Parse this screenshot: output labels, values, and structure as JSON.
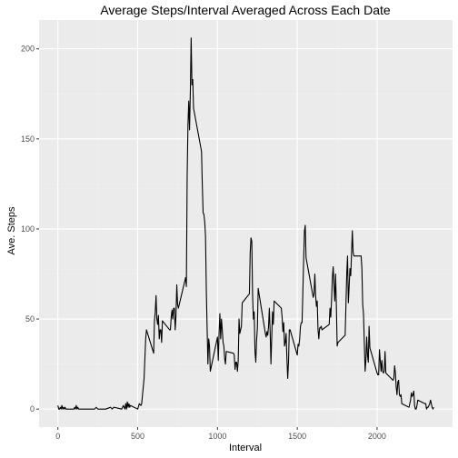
{
  "chart_data": {
    "type": "line",
    "title": "Average Steps/Interval Averaged Across Each Date",
    "xlabel": "Interval",
    "ylabel": "Ave. Steps",
    "xlim": [
      -118,
      2473
    ],
    "ylim": [
      -10,
      216
    ],
    "x_ticks": [
      0,
      500,
      1000,
      1500,
      2000
    ],
    "x_tick_labels": [
      "0",
      "500",
      "1000",
      "1500",
      "2000"
    ],
    "y_ticks": [
      0,
      50,
      100,
      150,
      200
    ],
    "y_tick_labels": [
      "0",
      "50",
      "100",
      "150",
      "200"
    ],
    "grid": true,
    "series": [
      {
        "color": "#000000",
        "points": [
          [
            0,
            2
          ],
          [
            5,
            0
          ],
          [
            10,
            0
          ],
          [
            15,
            1
          ],
          [
            20,
            0
          ],
          [
            25,
            2
          ],
          [
            30,
            0
          ],
          [
            35,
            1
          ],
          [
            40,
            0
          ],
          [
            45,
            1
          ],
          [
            50,
            0
          ],
          [
            55,
            0
          ],
          [
            100,
            0
          ],
          [
            105,
            1
          ],
          [
            110,
            0
          ],
          [
            115,
            2
          ],
          [
            120,
            0
          ],
          [
            125,
            1
          ],
          [
            130,
            0
          ],
          [
            150,
            0
          ],
          [
            200,
            0
          ],
          [
            230,
            0
          ],
          [
            240,
            1
          ],
          [
            250,
            0
          ],
          [
            300,
            0
          ],
          [
            330,
            1
          ],
          [
            340,
            0
          ],
          [
            350,
            1
          ],
          [
            400,
            0
          ],
          [
            410,
            2
          ],
          [
            420,
            0
          ],
          [
            425,
            3
          ],
          [
            430,
            0
          ],
          [
            435,
            4
          ],
          [
            440,
            1
          ],
          [
            445,
            3
          ],
          [
            450,
            1
          ],
          [
            455,
            2
          ],
          [
            500,
            0
          ],
          [
            510,
            3
          ],
          [
            520,
            2
          ],
          [
            525,
            3
          ],
          [
            540,
            17
          ],
          [
            550,
            39
          ],
          [
            555,
            44
          ],
          [
            600,
            31
          ],
          [
            605,
            49
          ],
          [
            610,
            54
          ],
          [
            615,
            63
          ],
          [
            620,
            50
          ],
          [
            625,
            47
          ],
          [
            630,
            52
          ],
          [
            635,
            39
          ],
          [
            640,
            44
          ],
          [
            645,
            44
          ],
          [
            650,
            37
          ],
          [
            655,
            49
          ],
          [
            700,
            44
          ],
          [
            705,
            44
          ],
          [
            710,
            51
          ],
          [
            715,
            55
          ],
          [
            720,
            50
          ],
          [
            725,
            56
          ],
          [
            730,
            56
          ],
          [
            735,
            44
          ],
          [
            740,
            52
          ],
          [
            745,
            69
          ],
          [
            750,
            58
          ],
          [
            755,
            56
          ],
          [
            800,
            73
          ],
          [
            805,
            68
          ],
          [
            810,
            129
          ],
          [
            815,
            158
          ],
          [
            820,
            171
          ],
          [
            825,
            155
          ],
          [
            830,
            177
          ],
          [
            835,
            206
          ],
          [
            840,
            180
          ],
          [
            845,
            183
          ],
          [
            850,
            167
          ],
          [
            900,
            143
          ],
          [
            905,
            124
          ],
          [
            910,
            109
          ],
          [
            915,
            108
          ],
          [
            920,
            104
          ],
          [
            925,
            96
          ],
          [
            930,
            66
          ],
          [
            935,
            45
          ],
          [
            940,
            25
          ],
          [
            945,
            39
          ],
          [
            950,
            35
          ],
          [
            955,
            21
          ],
          [
            1000,
            40
          ],
          [
            1005,
            27
          ],
          [
            1010,
            42
          ],
          [
            1015,
            53
          ],
          [
            1020,
            39
          ],
          [
            1025,
            50
          ],
          [
            1030,
            44
          ],
          [
            1035,
            37
          ],
          [
            1040,
            35
          ],
          [
            1045,
            28
          ],
          [
            1050,
            25
          ],
          [
            1055,
            32
          ],
          [
            1100,
            31
          ],
          [
            1105,
            30
          ],
          [
            1110,
            22
          ],
          [
            1115,
            26
          ],
          [
            1120,
            26
          ],
          [
            1125,
            21
          ],
          [
            1130,
            27
          ],
          [
            1135,
            50
          ],
          [
            1140,
            42
          ],
          [
            1145,
            44
          ],
          [
            1150,
            46
          ],
          [
            1155,
            59
          ],
          [
            1200,
            64
          ],
          [
            1205,
            87
          ],
          [
            1210,
            95
          ],
          [
            1215,
            93
          ],
          [
            1220,
            63
          ],
          [
            1225,
            50
          ],
          [
            1230,
            54
          ],
          [
            1235,
            32
          ],
          [
            1240,
            26
          ],
          [
            1245,
            38
          ],
          [
            1250,
            45
          ],
          [
            1255,
            67
          ],
          [
            1300,
            42
          ],
          [
            1305,
            40
          ],
          [
            1310,
            43
          ],
          [
            1315,
            41
          ],
          [
            1320,
            46
          ],
          [
            1325,
            56
          ],
          [
            1330,
            43
          ],
          [
            1335,
            25
          ],
          [
            1340,
            40
          ],
          [
            1345,
            54
          ],
          [
            1350,
            47
          ],
          [
            1355,
            60
          ],
          [
            1400,
            56
          ],
          [
            1405,
            51
          ],
          [
            1410,
            43
          ],
          [
            1415,
            48
          ],
          [
            1420,
            35
          ],
          [
            1425,
            37
          ],
          [
            1430,
            42
          ],
          [
            1435,
            28
          ],
          [
            1440,
            17
          ],
          [
            1445,
            26
          ],
          [
            1450,
            44
          ],
          [
            1455,
            44
          ],
          [
            1500,
            30
          ],
          [
            1505,
            36
          ],
          [
            1510,
            35
          ],
          [
            1515,
            39
          ],
          [
            1520,
            46
          ],
          [
            1525,
            48
          ],
          [
            1530,
            48
          ],
          [
            1535,
            65
          ],
          [
            1540,
            83
          ],
          [
            1545,
            99
          ],
          [
            1550,
            102
          ],
          [
            1555,
            84
          ],
          [
            1600,
            62
          ],
          [
            1605,
            64
          ],
          [
            1610,
            75
          ],
          [
            1615,
            63
          ],
          [
            1620,
            57
          ],
          [
            1625,
            60
          ],
          [
            1630,
            44
          ],
          [
            1635,
            39
          ],
          [
            1640,
            45
          ],
          [
            1645,
            45
          ],
          [
            1650,
            46
          ],
          [
            1655,
            44
          ],
          [
            1700,
            47
          ],
          [
            1705,
            56
          ],
          [
            1710,
            51
          ],
          [
            1715,
            61
          ],
          [
            1720,
            73
          ],
          [
            1725,
            79
          ],
          [
            1730,
            69
          ],
          [
            1735,
            60
          ],
          [
            1740,
            75
          ],
          [
            1745,
            57
          ],
          [
            1750,
            35
          ],
          [
            1755,
            37
          ],
          [
            1800,
            41
          ],
          [
            1805,
            58
          ],
          [
            1810,
            75
          ],
          [
            1815,
            85
          ],
          [
            1820,
            59
          ],
          [
            1825,
            68
          ],
          [
            1830,
            78
          ],
          [
            1835,
            74
          ],
          [
            1840,
            86
          ],
          [
            1845,
            99
          ],
          [
            1850,
            87
          ],
          [
            1855,
            85
          ],
          [
            1900,
            85
          ],
          [
            1905,
            78
          ],
          [
            1910,
            58
          ],
          [
            1915,
            53
          ],
          [
            1920,
            37
          ],
          [
            1925,
            21
          ],
          [
            1930,
            27
          ],
          [
            1935,
            40
          ],
          [
            1940,
            30
          ],
          [
            1945,
            26
          ],
          [
            1950,
            46
          ],
          [
            1955,
            34
          ],
          [
            2000,
            20
          ],
          [
            2005,
            19
          ],
          [
            2010,
            19
          ],
          [
            2015,
            33
          ],
          [
            2020,
            27
          ],
          [
            2025,
            21
          ],
          [
            2030,
            27
          ],
          [
            2035,
            21
          ],
          [
            2040,
            20
          ],
          [
            2045,
            21
          ],
          [
            2050,
            32
          ],
          [
            2055,
            20
          ],
          [
            2100,
            16
          ],
          [
            2105,
            17
          ],
          [
            2110,
            24
          ],
          [
            2115,
            20
          ],
          [
            2120,
            12
          ],
          [
            2125,
            8
          ],
          [
            2130,
            15
          ],
          [
            2135,
            16
          ],
          [
            2140,
            8
          ],
          [
            2145,
            7
          ],
          [
            2150,
            8
          ],
          [
            2155,
            3
          ],
          [
            2200,
            1
          ],
          [
            2205,
            3
          ],
          [
            2210,
            5
          ],
          [
            2215,
            9
          ],
          [
            2220,
            7
          ],
          [
            2225,
            8
          ],
          [
            2230,
            10
          ],
          [
            2235,
            2
          ],
          [
            2240,
            0
          ],
          [
            2245,
            0
          ],
          [
            2250,
            2
          ],
          [
            2255,
            5
          ],
          [
            2300,
            3
          ],
          [
            2305,
            3
          ],
          [
            2310,
            0
          ],
          [
            2315,
            1
          ],
          [
            2320,
            1
          ],
          [
            2325,
            2
          ],
          [
            2330,
            3
          ],
          [
            2335,
            5
          ],
          [
            2340,
            3
          ],
          [
            2345,
            1
          ],
          [
            2350,
            0
          ],
          [
            2355,
            1
          ]
        ]
      }
    ]
  }
}
